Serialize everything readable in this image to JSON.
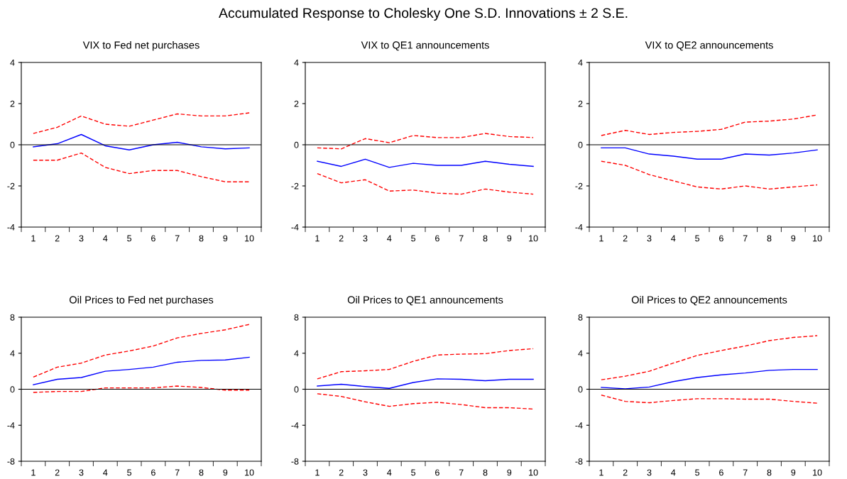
{
  "chart_data": [
    {
      "type": "line",
      "title": "VIX to Fed net purchases",
      "annotations": [
        "Accumulated Response to Cholesky One S.D. Innovations ± 2 S.E."
      ],
      "categories": [
        "1",
        "2",
        "3",
        "4",
        "5",
        "6",
        "7",
        "8",
        "9",
        "10"
      ],
      "ylim": [
        -4,
        4
      ],
      "yticks": [
        -4,
        -2,
        0,
        2,
        4
      ],
      "grid": false,
      "legend": false,
      "ref_lines": [
        {
          "axis": "y",
          "value": 0,
          "color": "#000000"
        }
      ],
      "series": [
        {
          "color": "#0000ff",
          "line_style": "solid",
          "values": [
            -0.1,
            0.05,
            0.5,
            -0.05,
            -0.25,
            0,
            0.12,
            -0.1,
            -0.2,
            -0.15
          ]
        },
        {
          "color": "#ff0000",
          "line_style": "dashed",
          "values": [
            0.55,
            0.85,
            1.4,
            1.0,
            0.9,
            1.2,
            1.5,
            1.4,
            1.4,
            1.55
          ]
        },
        {
          "color": "#ff0000",
          "line_style": "dashed",
          "values": [
            -0.75,
            -0.75,
            -0.4,
            -1.1,
            -1.4,
            -1.25,
            -1.25,
            -1.55,
            -1.8,
            -1.8
          ]
        }
      ]
    },
    {
      "type": "line",
      "title": "VIX to QE1 announcements",
      "categories": [
        "1",
        "2",
        "3",
        "4",
        "5",
        "6",
        "7",
        "8",
        "9",
        "10"
      ],
      "ylim": [
        -4,
        4
      ],
      "yticks": [
        -4,
        -2,
        0,
        2,
        4
      ],
      "grid": false,
      "legend": false,
      "ref_lines": [
        {
          "axis": "y",
          "value": 0,
          "color": "#000000"
        }
      ],
      "series": [
        {
          "color": "#0000ff",
          "line_style": "solid",
          "values": [
            -0.8,
            -1.05,
            -0.7,
            -1.1,
            -0.9,
            -1.0,
            -1.0,
            -0.8,
            -0.95,
            -1.05
          ]
        },
        {
          "color": "#ff0000",
          "line_style": "dashed",
          "values": [
            -0.15,
            -0.2,
            0.3,
            0.1,
            0.45,
            0.35,
            0.35,
            0.55,
            0.4,
            0.35
          ]
        },
        {
          "color": "#ff0000",
          "line_style": "dashed",
          "values": [
            -1.4,
            -1.85,
            -1.7,
            -2.25,
            -2.2,
            -2.35,
            -2.4,
            -2.15,
            -2.3,
            -2.4
          ]
        }
      ]
    },
    {
      "type": "line",
      "title": "VIX to QE2 announcements",
      "categories": [
        "1",
        "2",
        "3",
        "4",
        "5",
        "6",
        "7",
        "8",
        "9",
        "10"
      ],
      "ylim": [
        -4,
        4
      ],
      "yticks": [
        -4,
        -2,
        0,
        2,
        4
      ],
      "grid": false,
      "legend": false,
      "ref_lines": [
        {
          "axis": "y",
          "value": 0,
          "color": "#000000"
        }
      ],
      "series": [
        {
          "color": "#0000ff",
          "line_style": "solid",
          "values": [
            -0.15,
            -0.15,
            -0.45,
            -0.55,
            -0.7,
            -0.7,
            -0.45,
            -0.5,
            -0.4,
            -0.25
          ]
        },
        {
          "color": "#ff0000",
          "line_style": "dashed",
          "values": [
            0.45,
            0.7,
            0.5,
            0.6,
            0.65,
            0.75,
            1.1,
            1.15,
            1.25,
            1.45
          ]
        },
        {
          "color": "#ff0000",
          "line_style": "dashed",
          "values": [
            -0.8,
            -1.0,
            -1.45,
            -1.75,
            -2.05,
            -2.15,
            -2.0,
            -2.15,
            -2.05,
            -1.95
          ]
        }
      ]
    },
    {
      "type": "line",
      "title": "Oil Prices to Fed net purchases",
      "categories": [
        "1",
        "2",
        "3",
        "4",
        "5",
        "6",
        "7",
        "8",
        "9",
        "10"
      ],
      "ylim": [
        -8,
        8
      ],
      "yticks": [
        -8,
        -4,
        0,
        4,
        8
      ],
      "grid": false,
      "legend": false,
      "ref_lines": [
        {
          "axis": "y",
          "value": 0,
          "color": "#000000"
        }
      ],
      "series": [
        {
          "color": "#0000ff",
          "line_style": "solid",
          "values": [
            0.5,
            1.1,
            1.3,
            2.0,
            2.2,
            2.45,
            3.0,
            3.2,
            3.25,
            3.55
          ]
        },
        {
          "color": "#ff0000",
          "line_style": "dashed",
          "values": [
            1.35,
            2.45,
            2.9,
            3.8,
            4.25,
            4.8,
            5.7,
            6.2,
            6.6,
            7.2
          ]
        },
        {
          "color": "#ff0000",
          "line_style": "dashed",
          "values": [
            -0.35,
            -0.25,
            -0.25,
            0.15,
            0.15,
            0.15,
            0.35,
            0.2,
            -0.1,
            -0.1
          ]
        }
      ]
    },
    {
      "type": "line",
      "title": "Oil Prices to QE1 announcements",
      "categories": [
        "1",
        "2",
        "3",
        "4",
        "5",
        "6",
        "7",
        "8",
        "9",
        "10"
      ],
      "ylim": [
        -8,
        8
      ],
      "yticks": [
        -8,
        -4,
        0,
        4,
        8
      ],
      "grid": false,
      "legend": false,
      "ref_lines": [
        {
          "axis": "y",
          "value": 0,
          "color": "#000000"
        }
      ],
      "series": [
        {
          "color": "#0000ff",
          "line_style": "solid",
          "values": [
            0.35,
            0.55,
            0.3,
            0.1,
            0.75,
            1.15,
            1.1,
            0.95,
            1.1,
            1.1
          ]
        },
        {
          "color": "#ff0000",
          "line_style": "dashed",
          "values": [
            1.15,
            1.95,
            2.05,
            2.2,
            3.1,
            3.8,
            3.9,
            3.95,
            4.3,
            4.5
          ]
        },
        {
          "color": "#ff0000",
          "line_style": "dashed",
          "values": [
            -0.5,
            -0.8,
            -1.4,
            -1.9,
            -1.6,
            -1.45,
            -1.7,
            -2.05,
            -2.05,
            -2.2
          ]
        }
      ]
    },
    {
      "type": "line",
      "title": "Oil Prices to QE2 announcements",
      "categories": [
        "1",
        "2",
        "3",
        "4",
        "5",
        "6",
        "7",
        "8",
        "9",
        "10"
      ],
      "ylim": [
        -8,
        8
      ],
      "yticks": [
        -8,
        -4,
        0,
        4,
        8
      ],
      "grid": false,
      "legend": false,
      "ref_lines": [
        {
          "axis": "y",
          "value": 0,
          "color": "#000000"
        }
      ],
      "series": [
        {
          "color": "#0000ff",
          "line_style": "solid",
          "values": [
            0.2,
            0.05,
            0.25,
            0.85,
            1.3,
            1.6,
            1.8,
            2.1,
            2.2,
            2.2
          ]
        },
        {
          "color": "#ff0000",
          "line_style": "dashed",
          "values": [
            1.05,
            1.45,
            2.0,
            2.9,
            3.75,
            4.3,
            4.8,
            5.4,
            5.75,
            5.95
          ]
        },
        {
          "color": "#ff0000",
          "line_style": "dashed",
          "values": [
            -0.65,
            -1.35,
            -1.5,
            -1.25,
            -1.05,
            -1.05,
            -1.1,
            -1.1,
            -1.35,
            -1.55
          ]
        }
      ]
    }
  ]
}
